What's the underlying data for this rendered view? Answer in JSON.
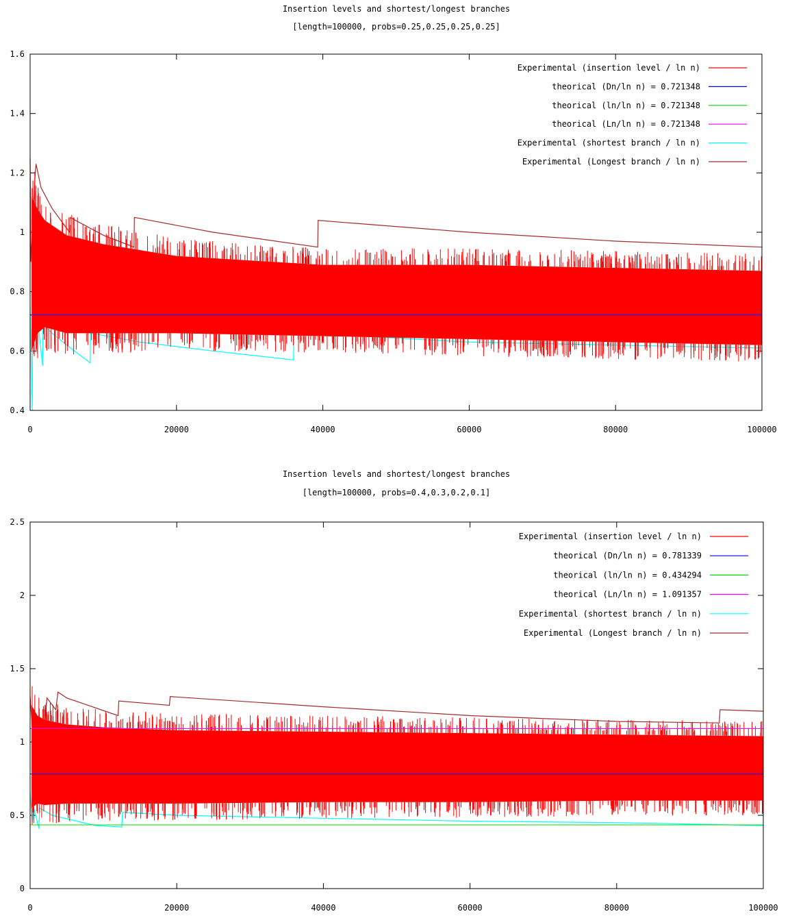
{
  "chart_data": [
    {
      "type": "line",
      "title": "Insertion levels and shortest/longest branches",
      "subtitle": "[length=100000, probs=0.25,0.25,0.25,0.25]",
      "xlim": [
        0,
        100000
      ],
      "ylim": [
        0.4,
        1.6
      ],
      "x_ticks": [
        0,
        20000,
        40000,
        60000,
        80000,
        100000
      ],
      "y_ticks": [
        0.4,
        0.6,
        0.8,
        1,
        1.2,
        1.4,
        1.6
      ],
      "x_tick_labels": [
        "0",
        "20000",
        "40000",
        "60000",
        "80000",
        "100000"
      ],
      "y_tick_labels": [
        "0.4",
        "0.6",
        "0.8",
        "1",
        "1.2",
        "1.4",
        "1.6"
      ],
      "legend_position": "top-right",
      "series": [
        {
          "name": "Experimental (insertion level / ln n)",
          "color": "#ff0000",
          "kind": "band",
          "x": [
            200,
            1000,
            2000,
            5000,
            10000,
            20000,
            40000,
            60000,
            80000,
            100000
          ],
          "y_low": [
            0.6,
            0.66,
            0.68,
            0.66,
            0.66,
            0.66,
            0.65,
            0.64,
            0.63,
            0.62
          ],
          "y_high": [
            1.12,
            1.08,
            1.04,
            0.99,
            0.96,
            0.92,
            0.89,
            0.89,
            0.88,
            0.87
          ]
        },
        {
          "name": "theorical (Dn/ln n) = 0.721348",
          "color": "#0000ff",
          "kind": "flat",
          "value": 0.721348
        },
        {
          "name": "theorical (ln/ln n) = 0.721348",
          "color": "#00dd00",
          "kind": "flat",
          "value": 0.721348
        },
        {
          "name": "theorical (Ln/ln n) = 0.721348",
          "color": "#ff00ff",
          "kind": "flat",
          "value": 0.721348
        },
        {
          "name": "Experimental (shortest branch / ln n)",
          "color": "#00ffff",
          "kind": "line",
          "x": [
            0,
            300,
            350,
            600,
            1000,
            1100,
            1700,
            1750,
            3000,
            5000,
            8200,
            8250,
            15000,
            25000,
            36000,
            36050,
            45000,
            60000,
            80000,
            100000
          ],
          "y": [
            0.75,
            0.4,
            0.72,
            0.66,
            0.59,
            0.69,
            0.55,
            0.69,
            0.66,
            0.62,
            0.56,
            0.66,
            0.63,
            0.6,
            0.57,
            0.66,
            0.65,
            0.63,
            0.62,
            0.61
          ]
        },
        {
          "name": "Experimental (Longest branch / ln n)",
          "color": "#a52a2a",
          "kind": "line",
          "x": [
            0,
            100,
            700,
            800,
            1500,
            3000,
            5400,
            5450,
            10000,
            14200,
            14250,
            25000,
            39300,
            39350,
            60000,
            80000,
            100000
          ],
          "y": [
            1.25,
            0.9,
            1.2,
            1.23,
            1.15,
            1.08,
            1.0,
            1.05,
            0.99,
            0.95,
            1.05,
            1.0,
            0.95,
            1.04,
            1.0,
            0.97,
            0.95
          ]
        }
      ]
    },
    {
      "type": "line",
      "title": "Insertion levels and shortest/longest branches",
      "subtitle": "[length=100000, probs=0.4,0.3,0.2,0.1]",
      "xlim": [
        0,
        100000
      ],
      "ylim": [
        0,
        2.5
      ],
      "x_ticks": [
        0,
        20000,
        40000,
        60000,
        80000,
        100000
      ],
      "y_ticks": [
        0,
        0.5,
        1,
        1.5,
        2,
        2.5
      ],
      "x_tick_labels": [
        "0",
        "20000",
        "40000",
        "60000",
        "80000",
        "100000"
      ],
      "y_tick_labels": [
        "0",
        "0.5",
        "1",
        "1.5",
        "2",
        "2.5"
      ],
      "legend_position": "top-right",
      "series": [
        {
          "name": "Experimental (insertion level / ln n)",
          "color": "#ff0000",
          "kind": "band",
          "x": [
            200,
            1000,
            2000,
            5000,
            10000,
            20000,
            40000,
            60000,
            80000,
            100000
          ],
          "y_low": [
            0.55,
            0.58,
            0.57,
            0.58,
            0.58,
            0.58,
            0.59,
            0.59,
            0.6,
            0.6
          ],
          "y_high": [
            1.25,
            1.18,
            1.15,
            1.12,
            1.1,
            1.08,
            1.07,
            1.06,
            1.05,
            1.04
          ]
        },
        {
          "name": "theorical (Dn/ln n) = 0.781339",
          "color": "#0000ff",
          "kind": "flat",
          "value": 0.781339
        },
        {
          "name": "theorical (ln/ln n) = 0.434294",
          "color": "#00dd00",
          "kind": "flat",
          "value": 0.434294
        },
        {
          "name": "theorical (Ln/ln n) = 1.091357",
          "color": "#ff00ff",
          "kind": "flat",
          "value": 1.091357
        },
        {
          "name": "Experimental (shortest branch / ln n)",
          "color": "#00ffff",
          "kind": "line",
          "x": [
            0,
            300,
            500,
            1200,
            1300,
            3000,
            8000,
            9000,
            12500,
            12600,
            20000,
            40000,
            60000,
            80000,
            100000
          ],
          "y": [
            0.66,
            0.45,
            0.55,
            0.41,
            0.55,
            0.5,
            0.44,
            0.43,
            0.42,
            0.52,
            0.5,
            0.48,
            0.46,
            0.45,
            0.43
          ]
        },
        {
          "name": "Experimental (Longest branch / ln n)",
          "color": "#a52a2a",
          "kind": "line",
          "x": [
            0,
            300,
            500,
            1000,
            1500,
            2000,
            2300,
            3500,
            3800,
            5000,
            12000,
            12100,
            19000,
            19100,
            40000,
            60000,
            80000,
            94000,
            94100,
            100000
          ],
          "y": [
            1.31,
            1.1,
            1.22,
            1.16,
            1.15,
            1.12,
            1.3,
            1.22,
            1.34,
            1.3,
            1.18,
            1.28,
            1.25,
            1.31,
            1.24,
            1.18,
            1.14,
            1.13,
            1.22,
            1.21
          ]
        }
      ]
    }
  ]
}
